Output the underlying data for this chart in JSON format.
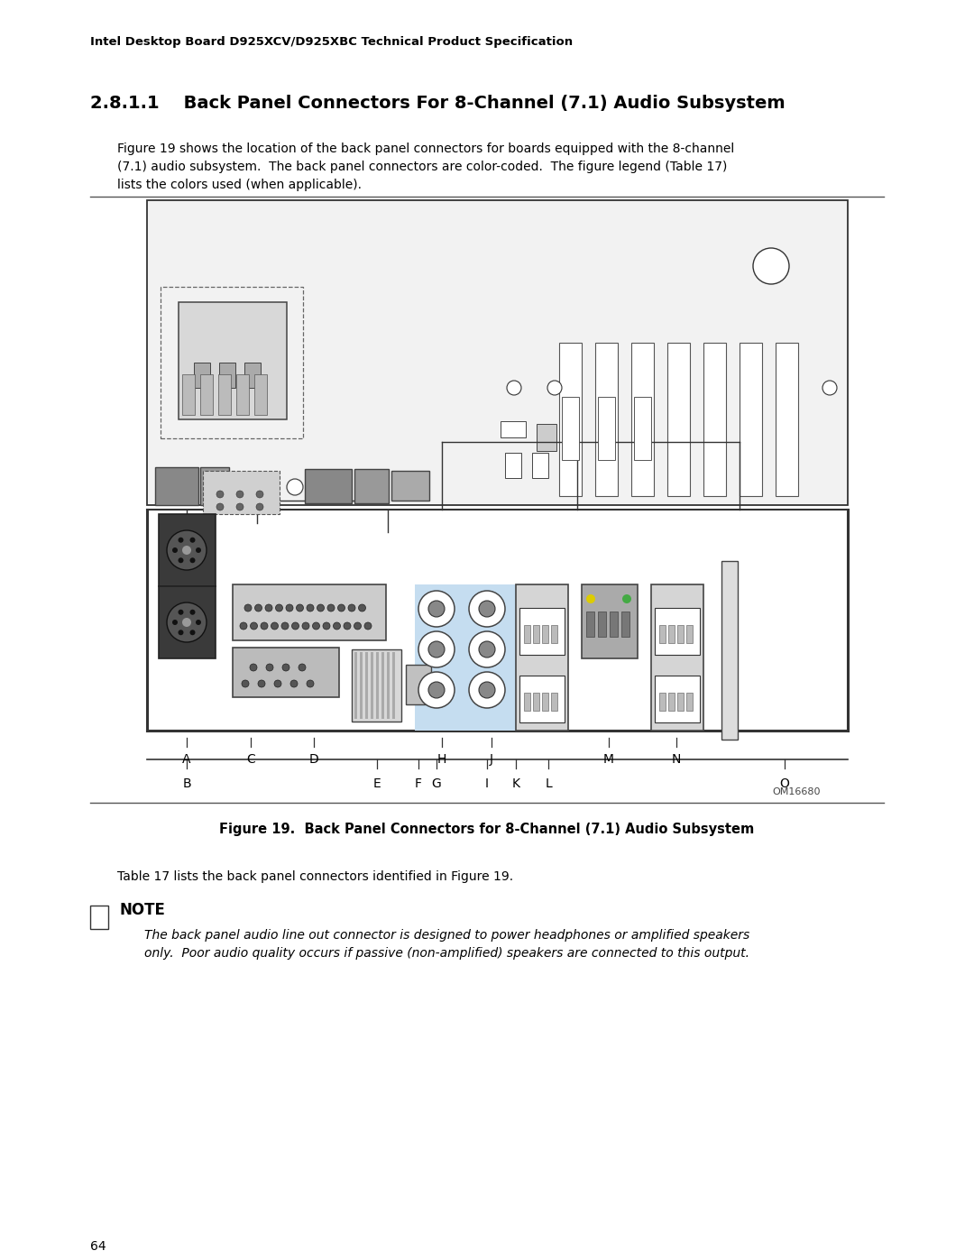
{
  "header": "Intel Desktop Board D925XCV/D925XBC Technical Product Specification",
  "section_title": "2.8.1.1    Back Panel Connectors For 8-Channel (7.1) Audio Subsystem",
  "body_text": "Figure 19 shows the location of the back panel connectors for boards equipped with the 8-channel\n(7.1) audio subsystem.  The back panel connectors are color-coded.  The figure legend (Table 17)\nlists the colors used (when applicable).",
  "figure_caption": "Figure 19.  Back Panel Connectors for 8-Channel (7.1) Audio Subsystem",
  "figure_id": "OM16680",
  "note_title": "NOTE",
  "note_text": "The back panel audio line out connector is designed to power headphones or amplified speakers\nonly.  Poor audio quality occurs if passive (non-amplified) speakers are connected to this output.",
  "table_text": "Table 17 lists the back panel connectors identified in Figure 19.",
  "page_number": "64",
  "bg_color": "#ffffff",
  "text_color": "#000000"
}
